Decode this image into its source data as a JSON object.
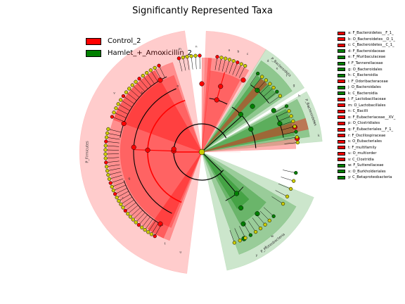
{
  "chart_data": {
    "type": "cladogram",
    "title": "Significantly Represented Taxa",
    "colors": {
      "Control_2": "#ff0000",
      "Hamlet_+_Amoxicillin_2": "#008000",
      "non_significant": "#cccc00"
    },
    "legend": [
      {
        "label": "Control_2",
        "color": "#ff0000"
      },
      {
        "label": "Hamlet_+_Amoxicillin_2",
        "color": "#008000"
      }
    ],
    "clade_key": [
      {
        "label": "a: F_Bacteroidetes__F_1_",
        "class": "Control_2"
      },
      {
        "label": "b: O_Bacteroidetes__O_1_",
        "class": "Control_2"
      },
      {
        "label": "c: C_Bacteroidetes__C_1_",
        "class": "Control_2"
      },
      {
        "label": "d: F_Bacteroidaceae",
        "class": "Hamlet_+_Amoxicillin_2"
      },
      {
        "label": "e: F_Muribaculaceae",
        "class": "Hamlet_+_Amoxicillin_2"
      },
      {
        "label": "f: F_Tannerellaceae",
        "class": "Hamlet_+_Amoxicillin_2"
      },
      {
        "label": "g: O_Bacteroidales",
        "class": "Hamlet_+_Amoxicillin_2"
      },
      {
        "label": "h: C_Bacteroidia",
        "class": "Hamlet_+_Amoxicillin_2"
      },
      {
        "label": "i: F_Odoribacteraceae",
        "class": "Control_2"
      },
      {
        "label": "j: O_Bacteroidales",
        "class": "Hamlet_+_Amoxicillin_2"
      },
      {
        "label": "k: C_Bacteroidia",
        "class": "Hamlet_+_Amoxicillin_2"
      },
      {
        "label": "l: F_Lactobacillaceae",
        "class": "Control_2"
      },
      {
        "label": "m: O_Lactobacillales",
        "class": "Control_2"
      },
      {
        "label": "n: C_Bacilli",
        "class": "Control_2"
      },
      {
        "label": "o: F_Eubacteriaceae__XV_",
        "class": "Control_2"
      },
      {
        "label": "p: O_Clostridiales",
        "class": "Control_2"
      },
      {
        "label": "q: F_Eubacteriales__F_1_",
        "class": "Control_2"
      },
      {
        "label": "r: F_Oscillospiraceae",
        "class": "Control_2"
      },
      {
        "label": "s: O_Eubacteriales",
        "class": "Control_2"
      },
      {
        "label": "t: F_multifamily",
        "class": "Control_2"
      },
      {
        "label": "u: O_multiorder",
        "class": "Control_2"
      },
      {
        "label": "v: C_Clostridia",
        "class": "Control_2"
      },
      {
        "label": "w: F_Sutterellaceae",
        "class": "Hamlet_+_Amoxicillin_2"
      },
      {
        "label": "x: O_Burkholderiales",
        "class": "Hamlet_+_Amoxicillin_2"
      },
      {
        "label": "y: C_Betaproteobacteria",
        "class": "Hamlet_+_Amoxicillin_2"
      }
    ],
    "phyla": [
      {
        "label": "P_Firmicutes",
        "class": "Control_2"
      },
      {
        "label": "P_Bacteroidota",
        "class": "Hamlet_+_Amoxicillin_2"
      },
      {
        "label": "P_Bacteroidetes",
        "class": "Hamlet_+_Amoxicillin_2"
      },
      {
        "label": "P_Proteobacteria",
        "class": "Hamlet_+_Amoxicillin_2"
      }
    ],
    "sector_letters": [
      "a",
      "b",
      "c",
      "d",
      "e",
      "f",
      "g",
      "h",
      "i",
      "j",
      "k",
      "l",
      "m",
      "n",
      "o",
      "p",
      "q",
      "r",
      "s",
      "t",
      "u",
      "v",
      "w",
      "x",
      "y"
    ]
  }
}
